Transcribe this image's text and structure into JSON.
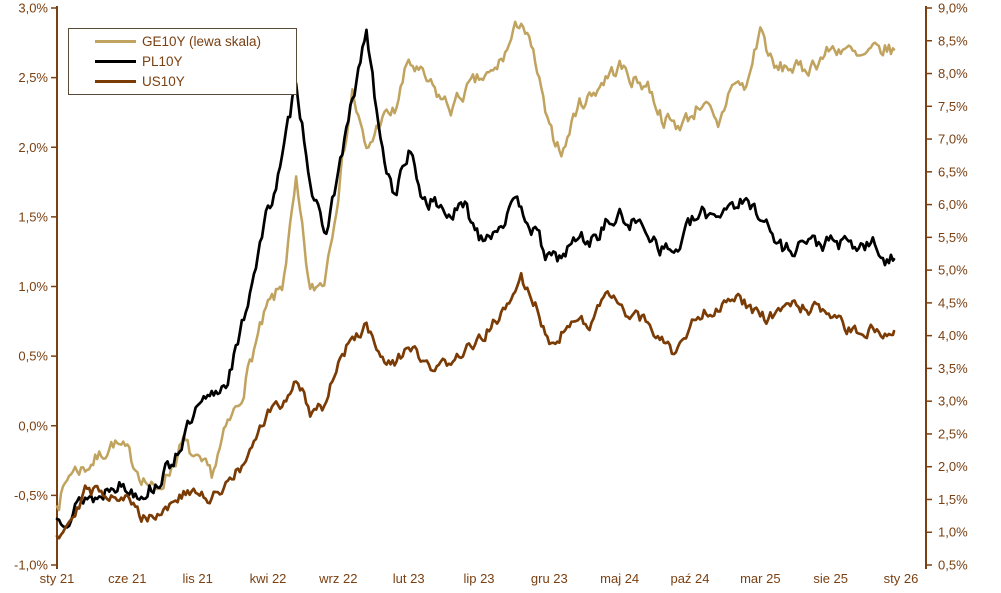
{
  "style": {
    "background": "#ffffff",
    "text_color": "#7a4012",
    "axis_color": "#7a4012",
    "legend_border_color": "#5a4a38"
  },
  "chart_data": {
    "type": "line",
    "title": "",
    "xlabel": "",
    "ylabel_left": "",
    "ylabel_right": "",
    "grid": false,
    "legend_position": "top-left",
    "x_unit": "months",
    "x_start_label": "sty 21",
    "x_end_label": "sty 26",
    "x_tick_labels": [
      "sty 21",
      "cze 21",
      "lis 21",
      "kwi 22",
      "wrz 22",
      "lut 23",
      "lip 23",
      "gru 23",
      "maj 24",
      "paź 24",
      "mar 25",
      "sie 25",
      "sty 26"
    ],
    "x_months_per_tick": 5,
    "left_axis": {
      "min": -1.0,
      "max": 3.0,
      "step": 0.5,
      "tick_labels": [
        "3,0%",
        "2,5%",
        "2,0%",
        "1,5%",
        "1,0%",
        "0,5%",
        "0,0%",
        "-0,5%",
        "-1,0%"
      ]
    },
    "right_axis": {
      "min": 0.5,
      "max": 9.0,
      "step": 0.5,
      "tick_labels": [
        "9,0%",
        "8,5%",
        "8,0%",
        "7,5%",
        "7,0%",
        "6,5%",
        "6,0%",
        "5,5%",
        "5,0%",
        "4,5%",
        "4,0%",
        "3,5%",
        "3,0%",
        "2,5%",
        "2,0%",
        "1,5%",
        "1,0%",
        "0,5%"
      ]
    },
    "series": [
      {
        "name": "GE10Y (lewa skala)",
        "axis": "left",
        "color": "#C0A35E",
        "monthly_values_pct": [
          -0.57,
          -0.32,
          -0.3,
          -0.22,
          -0.12,
          -0.2,
          -0.35,
          -0.48,
          -0.32,
          -0.12,
          -0.28,
          -0.35,
          -0.04,
          0.18,
          0.55,
          0.85,
          1.0,
          1.72,
          0.95,
          1.05,
          1.7,
          2.4,
          1.95,
          2.2,
          2.25,
          2.62,
          2.5,
          2.38,
          2.28,
          2.4,
          2.48,
          2.52,
          2.7,
          2.93,
          2.6,
          2.1,
          1.98,
          2.3,
          2.38,
          2.5,
          2.58,
          2.48,
          2.45,
          2.22,
          2.15,
          2.22,
          2.35,
          2.1,
          2.48,
          2.42,
          2.86,
          2.55,
          2.58,
          2.55,
          2.62,
          2.7,
          2.72,
          2.62,
          2.68,
          2.7
        ]
      },
      {
        "name": "PL10Y",
        "axis": "right",
        "color": "#000000",
        "monthly_values_pct": [
          1.2,
          1.3,
          1.55,
          1.52,
          1.8,
          1.65,
          1.62,
          1.72,
          2.0,
          2.45,
          2.85,
          3.05,
          3.3,
          3.95,
          5.0,
          5.9,
          6.65,
          7.9,
          6.4,
          5.45,
          6.5,
          7.55,
          8.65,
          6.9,
          6.15,
          6.8,
          6.1,
          6.0,
          5.85,
          5.95,
          5.55,
          5.6,
          5.85,
          6.0,
          5.55,
          5.15,
          5.22,
          5.5,
          5.45,
          5.7,
          5.8,
          5.72,
          5.62,
          5.35,
          5.28,
          5.7,
          5.85,
          5.88,
          6.05,
          6.0,
          5.9,
          5.45,
          5.3,
          5.45,
          5.4,
          5.42,
          5.38,
          5.35,
          5.38,
          5.15
        ]
      },
      {
        "name": "US10Y",
        "axis": "right",
        "color": "#7A3B05",
        "monthly_values_pct": [
          0.95,
          1.25,
          1.62,
          1.62,
          1.6,
          1.5,
          1.25,
          1.28,
          1.42,
          1.58,
          1.58,
          1.48,
          1.78,
          1.95,
          2.3,
          2.85,
          2.92,
          3.35,
          2.85,
          2.95,
          3.6,
          3.95,
          4.15,
          3.6,
          3.52,
          3.88,
          3.55,
          3.45,
          3.65,
          3.75,
          3.9,
          4.2,
          4.4,
          4.88,
          4.45,
          3.95,
          4.05,
          4.25,
          4.22,
          4.6,
          4.45,
          4.28,
          4.22,
          3.92,
          3.72,
          4.15,
          4.4,
          4.42,
          4.65,
          4.45,
          4.25,
          4.3,
          4.48,
          4.42,
          4.4,
          4.28,
          4.12,
          4.02,
          4.1,
          4.08
        ]
      }
    ]
  }
}
